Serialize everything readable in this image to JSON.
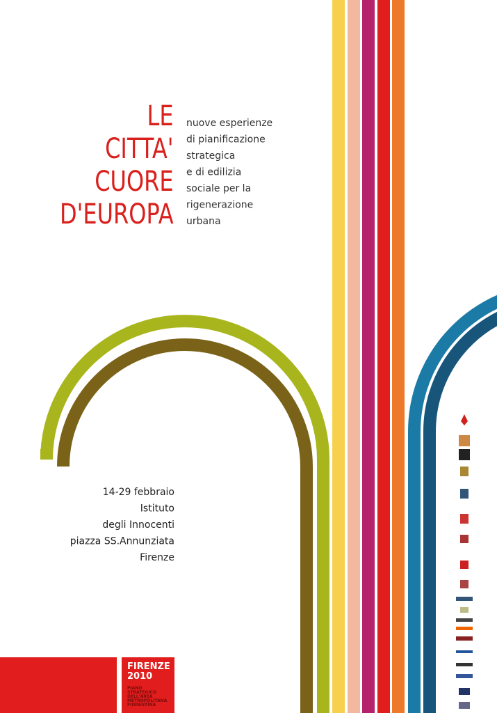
{
  "title": {
    "lines": [
      "LE",
      "CITTA'",
      "CUORE",
      "D'EUROPA"
    ]
  },
  "subtitle": {
    "lines": [
      "nuove esperienze",
      "di pianificazione",
      "strategica",
      "e di edilizia",
      "sociale per la",
      "rigenerazione",
      "urbana"
    ]
  },
  "event": {
    "lines": [
      "14-29 febbraio",
      "Istituto",
      "degli Innocenti",
      "piazza SS.Annunziata",
      "Firenze"
    ]
  },
  "badge": {
    "title": [
      "FIRENZE",
      "2010"
    ],
    "subtitle": [
      "PIANO",
      "STRATEGICO",
      "DELL'AREA",
      "METROPOLITANA",
      "FIORENTINA"
    ]
  }
}
